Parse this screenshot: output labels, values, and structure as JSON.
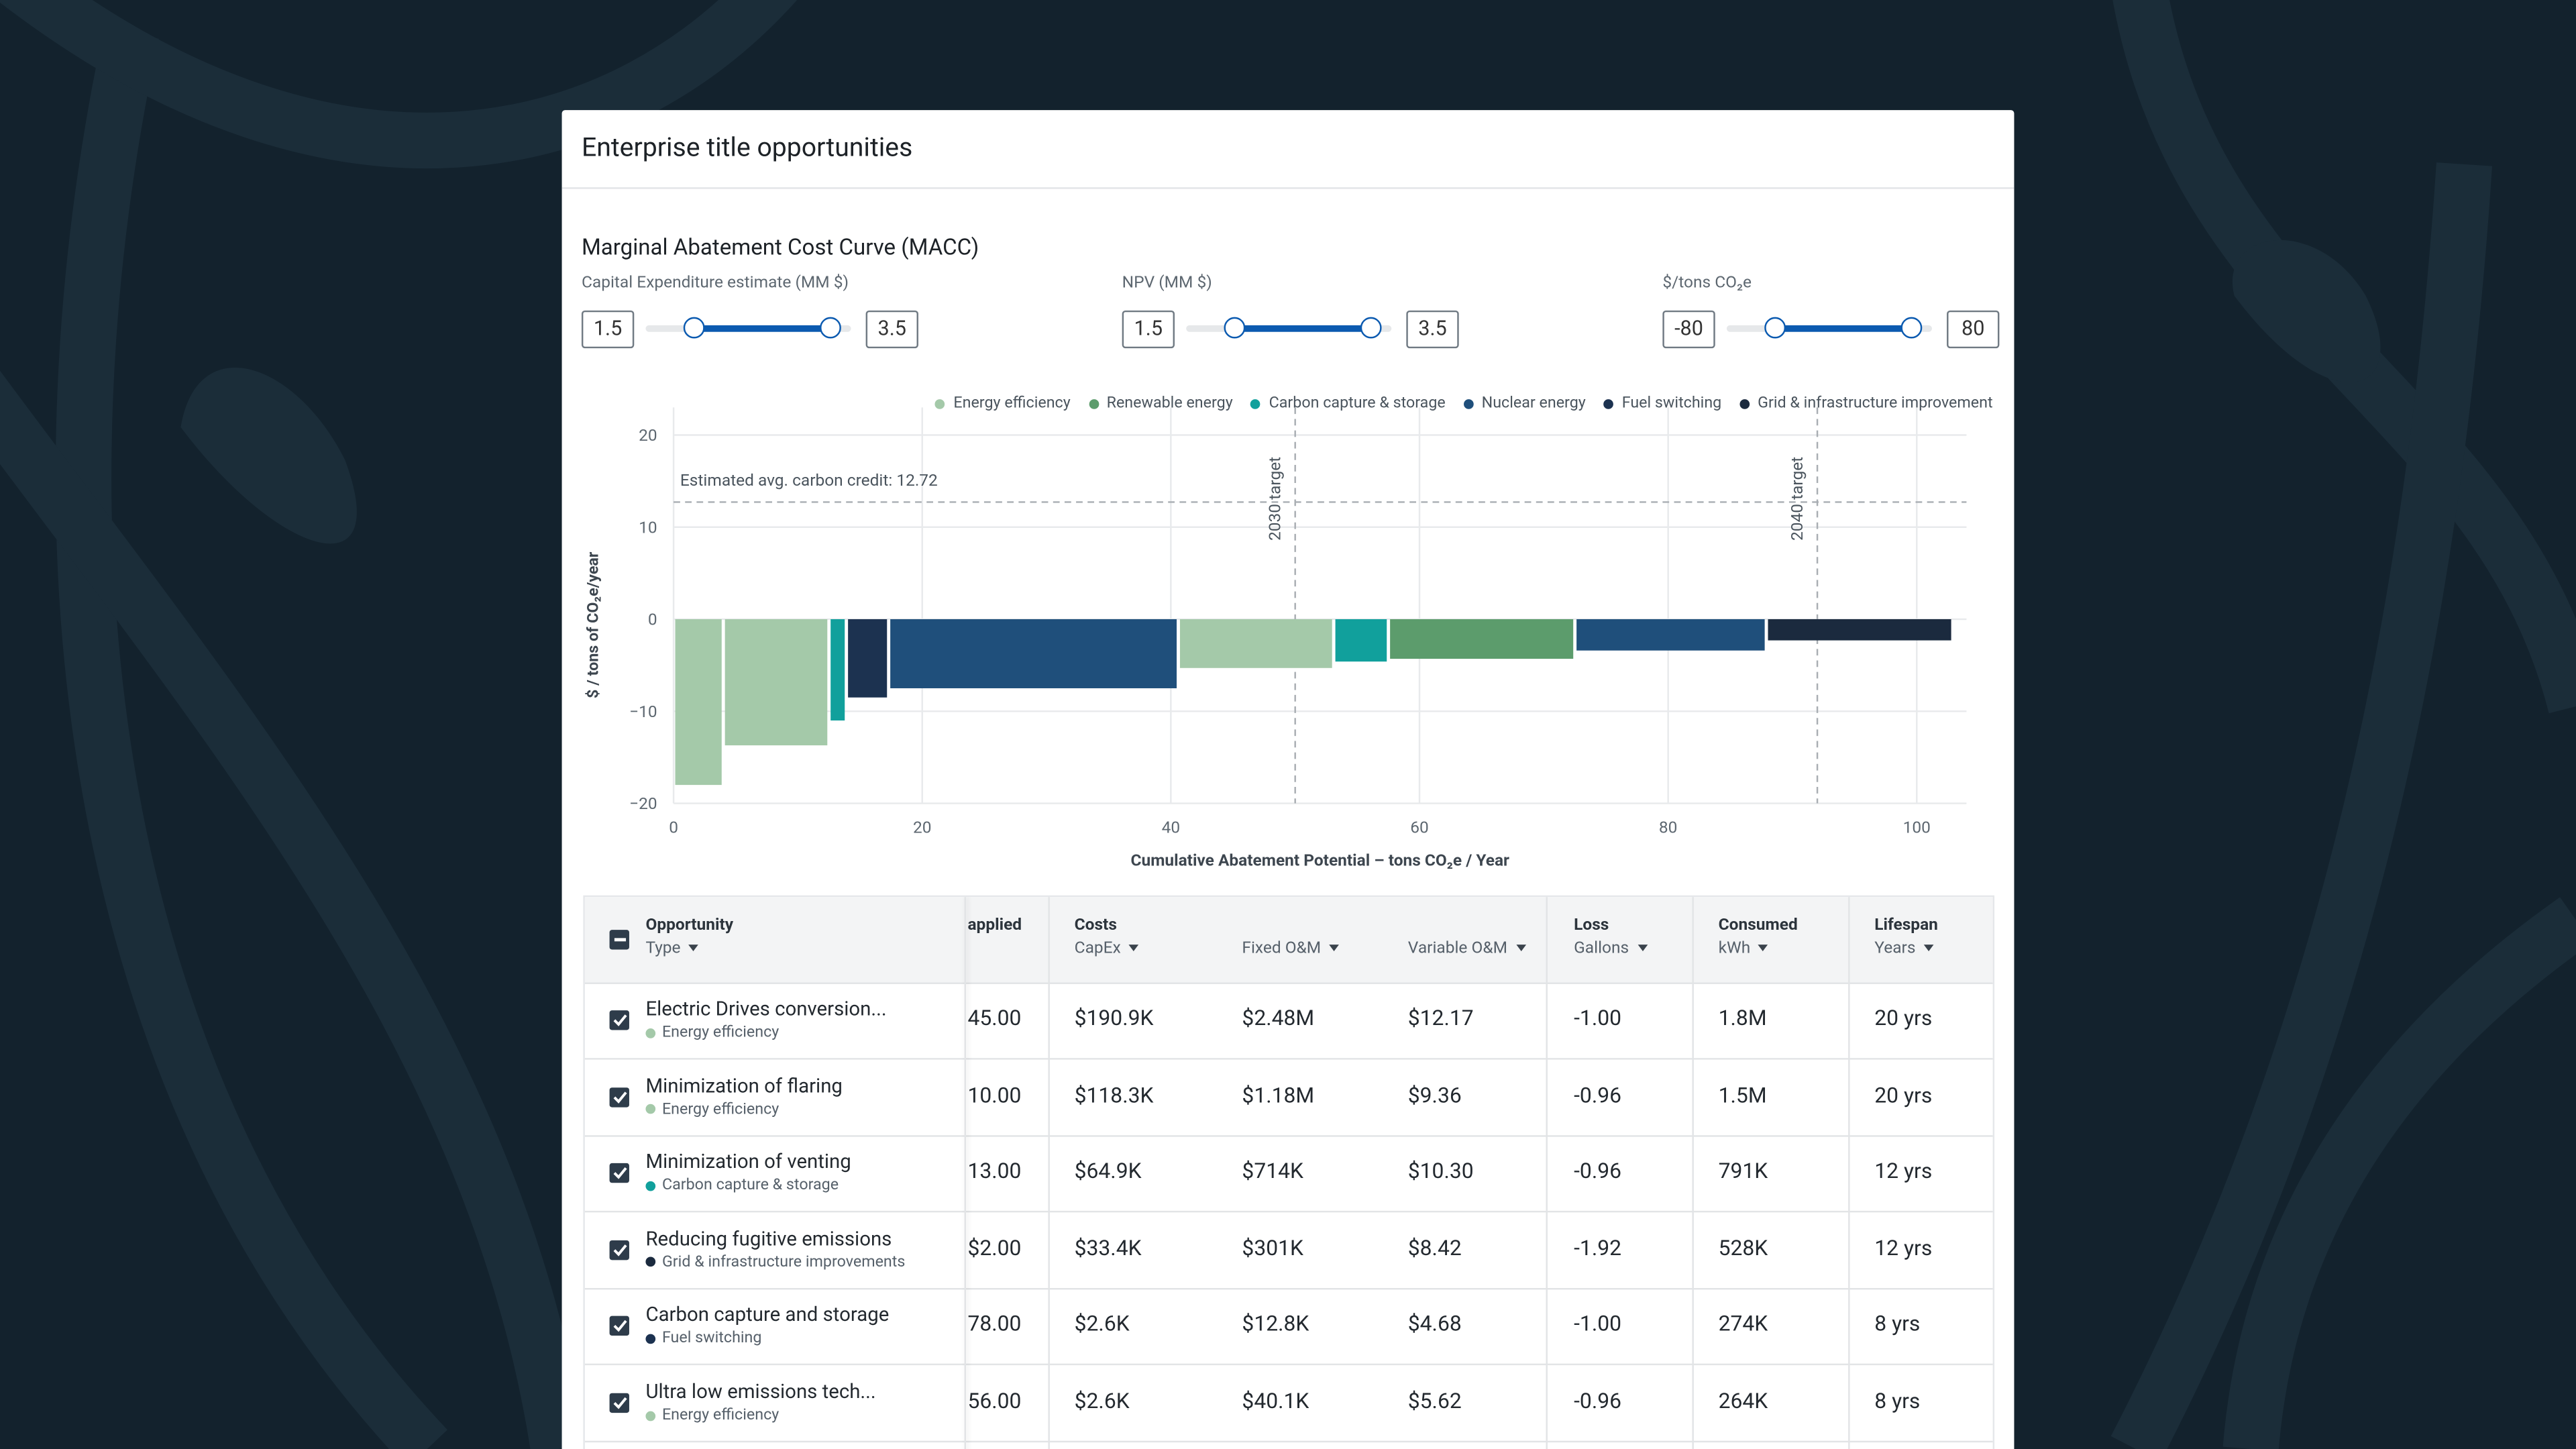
{
  "header": {
    "title": "Enterprise title opportunities"
  },
  "filters": [
    {
      "label": "Capital Expenditure estimate (MM $)",
      "low": 1.5,
      "high": 3.5
    },
    {
      "label": "NPV (MM $)",
      "low": 1.5,
      "high": 3.5
    },
    {
      "label": "$/tons CO₂e",
      "low": -80,
      "high": 80
    }
  ],
  "chart_data": {
    "type": "bar",
    "title": "Marginal Abatement Cost Curve (MACC)",
    "x_label": "Cumulative Abatement Potential –  tons CO₂e / Year",
    "y_label": "$ / tons of CO₂e/year",
    "series": [
      {
        "name": "Energy efficiency",
        "color": "#a4c9a9"
      },
      {
        "name": "Renewable energy",
        "color": "#5c9c6c"
      },
      {
        "name": "Carbon capture & storage",
        "color": "#11a09c"
      },
      {
        "name": "Nuclear energy",
        "color": "#1f4f7b"
      },
      {
        "name": "Fuel switching",
        "color": "#1c3250"
      },
      {
        "name": "Grid & infrastructure improvement",
        "color": "#1b2a3e"
      }
    ],
    "groups": [
      "Energy efficiency",
      "Energy efficiency",
      "Carbon capture & storage",
      "Fuel switching",
      "Nuclear energy",
      "Energy efficiency",
      "Carbon capture & storage",
      "Renewable energy",
      "Nuclear energy",
      "Grid & infrastructure improvement"
    ],
    "widths": [
      4,
      8.5,
      1.4,
      3.4,
      23.3,
      12.5,
      4.4,
      15,
      15.4,
      15
    ],
    "values": [
      -18,
      -13.7,
      -11,
      -8.5,
      -7.5,
      -5.3,
      -4.6,
      -4.3,
      -3.4,
      -2.3
    ],
    "reference_line": {
      "value": 12.72,
      "label": "Estimated avg. carbon credit: 12.72"
    },
    "targets": [
      {
        "value": 50,
        "label": "2030  target"
      },
      {
        "value": 92,
        "label": "2040  target"
      }
    ],
    "xlim": [
      0,
      104
    ],
    "ylim": [
      -20,
      23
    ],
    "xticks": [
      0,
      20,
      40,
      60,
      80,
      100
    ],
    "yticks": [
      {
        "value": -20,
        "label": "−20"
      },
      {
        "value": -10,
        "label": "−10"
      },
      0,
      10,
      20
    ],
    "grid": true
  },
  "table": {
    "columns": [
      {
        "title": "Opportunity",
        "sub": "Type"
      },
      {
        "title": "applied"
      },
      {
        "title": "Costs",
        "sub": "CapEx"
      },
      {
        "sub": "Fixed O&M"
      },
      {
        "sub": "Variable O&M"
      },
      {
        "title": "Loss",
        "sub": "Gallons"
      },
      {
        "title": "Consumed",
        "sub": "kWh"
      },
      {
        "title": "Lifespan",
        "sub": "Years"
      }
    ],
    "rows": [
      {
        "name": "Electric Drives conversion...",
        "type": "Energy efficiency",
        "cells": [
          "45.00",
          "$190.9K",
          "$2.48M",
          "$12.17",
          "-1.00",
          "1.8M",
          "20 yrs"
        ]
      },
      {
        "name": "Minimization of flaring",
        "type": "Energy efficiency",
        "cells": [
          "10.00",
          "$118.3K",
          "$1.18M",
          "$9.36",
          "-0.96",
          "1.5M",
          "20 yrs"
        ]
      },
      {
        "name": "Minimization of venting",
        "type": "Carbon capture & storage",
        "cells": [
          "13.00",
          "$64.9K",
          "$714K",
          "$10.30",
          "-0.96",
          "791K",
          "12 yrs"
        ]
      },
      {
        "name": "Reducing fugitive emissions",
        "type": "Grid & infrastructure improvements",
        "cells": [
          "$2.00",
          "$33.4K",
          "$301K",
          "$8.42",
          "-1.92",
          "528K",
          "12 yrs"
        ]
      },
      {
        "name": "Carbon capture and storage",
        "type": "Fuel switching",
        "cells": [
          "78.00",
          "$2.6K",
          "$12.8K",
          "$4.68",
          "-1.00",
          "274K",
          "8 yrs"
        ]
      },
      {
        "name": "Ultra low emissions tech...",
        "type": "Energy efficiency",
        "cells": [
          "56.00",
          "$2.6K",
          "$40.1K",
          "$5.62",
          "-0.96",
          "264K",
          "8 yrs"
        ]
      }
    ]
  }
}
